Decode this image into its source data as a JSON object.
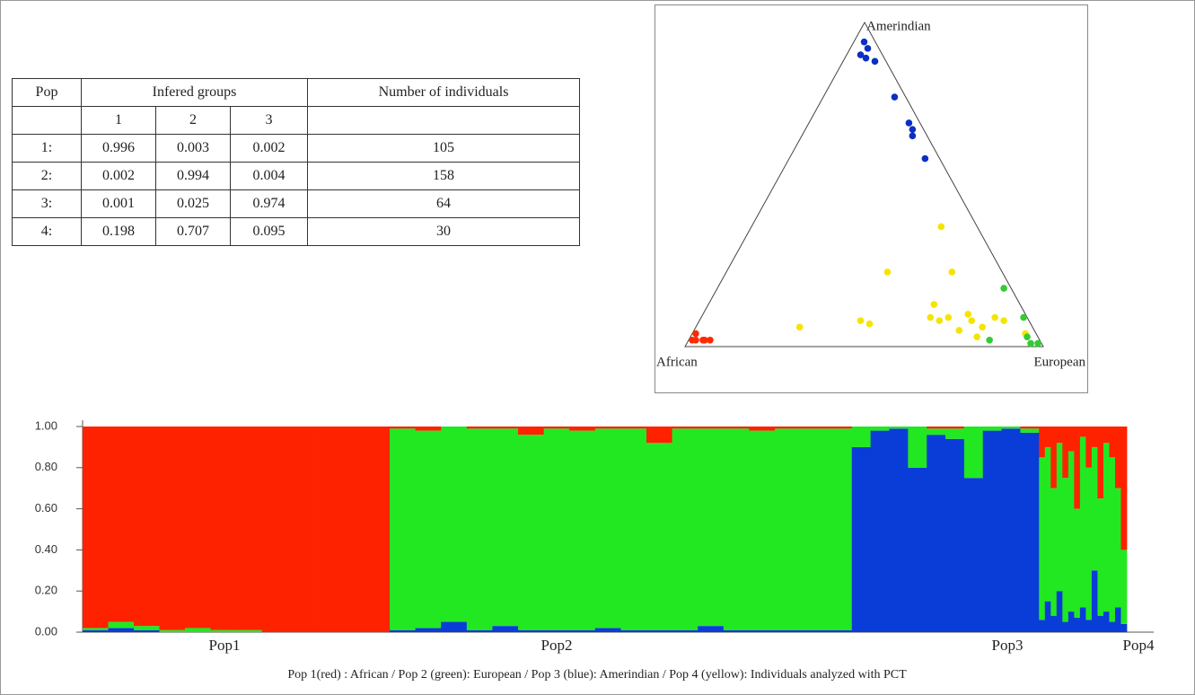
{
  "table": {
    "header": {
      "pop": "Pop",
      "groups": "Infered groups",
      "count": "Number of individuals"
    },
    "subheader": [
      "1",
      "2",
      "3"
    ],
    "rows": [
      [
        "1:",
        0.996,
        0.003,
        0.002,
        105
      ],
      [
        "2:",
        0.002,
        0.994,
        0.004,
        158
      ],
      [
        "3:",
        0.001,
        0.025,
        0.974,
        64
      ],
      [
        "4:",
        0.198,
        0.707,
        0.095,
        30
      ]
    ]
  },
  "chart_data": [
    {
      "type": "ternary",
      "vertices": {
        "top": "Amerindian",
        "left": "African",
        "right": "European"
      },
      "series": [
        {
          "color": "#0a2fc4",
          "values": [
            [
              0.03,
              0.03,
              0.94
            ],
            [
              0.03,
              0.05,
              0.92
            ],
            [
              0.06,
              0.04,
              0.9
            ],
            [
              0.05,
              0.06,
              0.89
            ],
            [
              0.03,
              0.09,
              0.88
            ],
            [
              0.03,
              0.2,
              0.77
            ],
            [
              0.03,
              0.28,
              0.69
            ],
            [
              0.03,
              0.3,
              0.67
            ],
            [
              0.04,
              0.31,
              0.65
            ],
            [
              0.04,
              0.38,
              0.58
            ]
          ]
        },
        {
          "color": "#ff2a00",
          "values": [
            [
              0.95,
              0.01,
              0.04
            ],
            [
              0.935,
              0.045,
              0.02
            ],
            [
              0.97,
              0.01,
              0.02
            ],
            [
              0.92,
              0.06,
              0.02
            ],
            [
              0.96,
              0.02,
              0.02
            ],
            [
              0.94,
              0.04,
              0.02
            ]
          ]
        },
        {
          "color": "#f5e400",
          "values": [
            [
              0.1,
              0.53,
              0.37
            ],
            [
              0.32,
              0.45,
              0.23
            ],
            [
              0.14,
              0.63,
              0.23
            ],
            [
              0.24,
              0.63,
              0.13
            ],
            [
              0.65,
              0.29,
              0.06
            ],
            [
              0.47,
              0.45,
              0.08
            ],
            [
              0.44,
              0.48,
              0.07
            ],
            [
              0.27,
              0.64,
              0.09
            ],
            [
              0.22,
              0.69,
              0.09
            ],
            [
              0.25,
              0.67,
              0.08
            ],
            [
              0.16,
              0.74,
              0.1
            ],
            [
              0.16,
              0.76,
              0.08
            ],
            [
              0.21,
              0.74,
              0.05
            ],
            [
              0.14,
              0.8,
              0.06
            ],
            [
              0.09,
              0.82,
              0.09
            ],
            [
              0.07,
              0.85,
              0.08
            ],
            [
              0.17,
              0.8,
              0.03
            ],
            [
              0.03,
              0.93,
              0.04
            ]
          ]
        },
        {
          "color": "#33cc33",
          "values": [
            [
              0.02,
              0.8,
              0.18
            ],
            [
              0.01,
              0.9,
              0.09
            ],
            [
              0.14,
              0.84,
              0.02
            ],
            [
              0.03,
              0.94,
              0.03
            ],
            [
              0.03,
              0.96,
              0.01
            ],
            [
              0.01,
              0.98,
              0.01
            ]
          ]
        }
      ]
    },
    {
      "type": "stacked_bar",
      "ylim": [
        0,
        1
      ],
      "yticks": [
        {
          "value": 0,
          "label": "0.00"
        },
        {
          "value": 0.2,
          "label": "0.20"
        },
        {
          "value": 0.4,
          "label": "0.40"
        },
        {
          "value": 0.6,
          "label": "0.60"
        },
        {
          "value": 0.8,
          "label": "0.80"
        },
        {
          "value": 1,
          "label": "1.00"
        }
      ],
      "groups": [
        {
          "label": "Pop1",
          "series": [
            {
              "color": "#0a3cd8",
              "values": [
                0.01,
                0.02,
                0.01,
                0,
                0,
                0,
                0,
                0,
                0,
                0,
                0,
                0
              ]
            },
            {
              "color": "#22e822",
              "values": [
                0.01,
                0.03,
                0.02,
                0.01,
                0.02,
                0.01,
                0.01,
                0,
                0,
                0,
                0,
                0
              ]
            },
            {
              "color": "#ff2200",
              "values": [
                0.98,
                0.95,
                0.97,
                0.99,
                0.98,
                0.99,
                0.99,
                1,
                1,
                1,
                1,
                1
              ]
            }
          ]
        },
        {
          "label": "Pop2",
          "series": [
            {
              "color": "#0a3cd8",
              "values": [
                0.01,
                0.02,
                0.05,
                0.01,
                0.03,
                0.01,
                0.01,
                0.01,
                0.02,
                0.01,
                0.01,
                0.01,
                0.03,
                0.01,
                0.01,
                0.01,
                0.01,
                0.01
              ]
            },
            {
              "color": "#22e822",
              "values": [
                0.98,
                0.96,
                0.95,
                0.98,
                0.96,
                0.95,
                0.98,
                0.97,
                0.97,
                0.98,
                0.91,
                0.98,
                0.96,
                0.98,
                0.97,
                0.98,
                0.98,
                0.98
              ]
            },
            {
              "color": "#ff2200",
              "values": [
                0.01,
                0.02,
                0,
                0.01,
                0.01,
                0.04,
                0.01,
                0.02,
                0.01,
                0.01,
                0.08,
                0.01,
                0.01,
                0.01,
                0.02,
                0.01,
                0.01,
                0.01
              ]
            }
          ]
        },
        {
          "label": "Pop3",
          "series": [
            {
              "color": "#0a3cd8",
              "values": [
                0.9,
                0.98,
                0.99,
                0.8,
                0.96,
                0.94,
                0.75,
                0.98,
                0.99,
                0.97
              ]
            },
            {
              "color": "#22e822",
              "values": [
                0.1,
                0.02,
                0.01,
                0.2,
                0.03,
                0.05,
                0.25,
                0.02,
                0.01,
                0.02
              ]
            },
            {
              "color": "#ff2200",
              "values": [
                0,
                0,
                0,
                0,
                0.01,
                0.01,
                0,
                0,
                0,
                0.01
              ]
            }
          ]
        },
        {
          "label": "Pop4",
          "series": [
            {
              "color": "#0a3cd8",
              "values": [
                0.06,
                0.15,
                0.08,
                0.2,
                0.05,
                0.1,
                0.07,
                0.12,
                0.06,
                0.3,
                0.08,
                0.1,
                0.05,
                0.12,
                0.04
              ]
            },
            {
              "color": "#22e822",
              "values": [
                0.79,
                0.75,
                0.62,
                0.72,
                0.7,
                0.78,
                0.53,
                0.83,
                0.74,
                0.6,
                0.57,
                0.82,
                0.8,
                0.58,
                0.36
              ]
            },
            {
              "color": "#ff2200",
              "values": [
                0.15,
                0.1,
                0.3,
                0.08,
                0.25,
                0.12,
                0.4,
                0.05,
                0.2,
                0.1,
                0.35,
                0.08,
                0.15,
                0.3,
                0.6
              ]
            }
          ]
        }
      ]
    }
  ],
  "caption": "Pop 1(red) : African / Pop 2 (green): European / Pop 3 (blue): Amerindian / Pop 4 (yellow): Individuals analyzed with PCT"
}
